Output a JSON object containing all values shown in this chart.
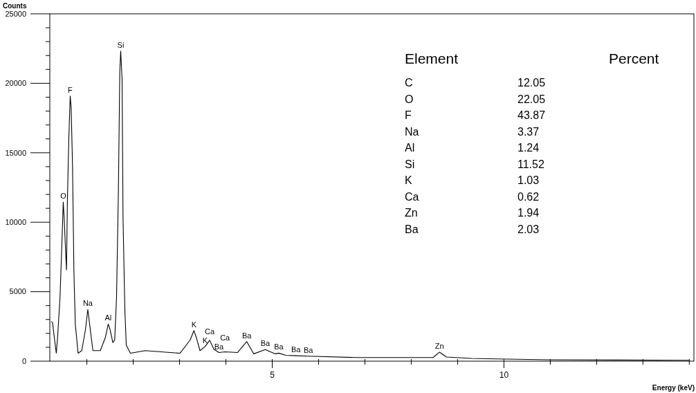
{
  "chart_data": {
    "type": "line",
    "xlabel": "Energy (keV)",
    "ylabel": "Counts",
    "x": [
      0.23,
      0.26,
      0.29,
      0.34,
      0.37,
      0.42,
      0.46,
      0.49,
      0.51,
      0.54,
      0.56,
      0.58,
      0.61,
      0.64,
      0.66,
      0.69,
      0.72,
      0.75,
      0.81,
      0.89,
      0.97,
      1.02,
      1.08,
      1.13,
      1.29,
      1.4,
      1.46,
      1.5,
      1.56,
      1.6,
      1.64,
      1.68,
      1.71,
      1.73,
      1.76,
      1.78,
      1.82,
      1.85,
      1.94,
      2.26,
      3.01,
      3.23,
      3.31,
      3.36,
      3.44,
      3.55,
      3.65,
      3.74,
      3.85,
      3.98,
      4.25,
      4.45,
      4.6,
      4.85,
      5.06,
      5.14,
      5.29,
      5.51,
      5.78,
      6.83,
      7.82,
      8.47,
      8.61,
      8.76,
      9.3,
      10.05,
      11,
      12.5,
      14
    ],
    "series": [
      {
        "color": "#000000",
        "values": [
          2860,
          2770,
          1900,
          570,
          1810,
          4580,
          8400,
          11450,
          10300,
          8000,
          6580,
          11640,
          16000,
          19080,
          18300,
          14100,
          6490,
          2670,
          570,
          760,
          2290,
          3720,
          2100,
          760,
          760,
          1720,
          2670,
          2290,
          1340,
          1530,
          4580,
          12210,
          20800,
          22320,
          20230,
          10300,
          3630,
          1140,
          570,
          760,
          570,
          1530,
          2200,
          1720,
          760,
          1050,
          1500,
          860,
          620,
          670,
          620,
          1410,
          530,
          830,
          530,
          580,
          420,
          390,
          360,
          260,
          260,
          260,
          650,
          300,
          200,
          150,
          100,
          80,
          60
        ]
      }
    ],
    "xlim": [
      0.2,
      14.1
    ],
    "xticks": [
      {
        "value": 1,
        "label": null
      },
      {
        "value": 2,
        "label": null
      },
      {
        "value": 3,
        "label": null
      },
      {
        "value": 4,
        "label": null
      },
      5,
      {
        "value": 6,
        "label": null
      },
      {
        "value": 7,
        "label": null
      },
      {
        "value": 8,
        "label": null
      },
      {
        "value": 9,
        "label": null
      },
      10,
      {
        "value": 11,
        "label": null
      },
      {
        "value": 12,
        "label": null
      },
      {
        "value": 13,
        "label": null
      },
      {
        "value": 14,
        "label": null
      }
    ],
    "ylim": [
      0,
      25000
    ],
    "yticks": [
      0,
      {
        "value": 1000,
        "label": null
      },
      {
        "value": 2000,
        "label": null
      },
      {
        "value": 3000,
        "label": null
      },
      {
        "value": 4000,
        "label": null
      },
      5000,
      {
        "value": 6000,
        "label": null
      },
      {
        "value": 7000,
        "label": null
      },
      {
        "value": 8000,
        "label": null
      },
      {
        "value": 9000,
        "label": null
      },
      10000,
      {
        "value": 11000,
        "label": null
      },
      {
        "value": 12000,
        "label": null
      },
      {
        "value": 13000,
        "label": null
      },
      {
        "value": 14000,
        "label": null
      },
      15000,
      {
        "value": 16000,
        "label": null
      },
      {
        "value": 17000,
        "label": null
      },
      {
        "value": 18000,
        "label": null
      },
      {
        "value": 19000,
        "label": null
      },
      20000,
      {
        "value": 21000,
        "label": null
      },
      {
        "value": 22000,
        "label": null
      },
      {
        "value": 23000,
        "label": null
      },
      {
        "value": 24000,
        "label": null
      },
      25000
    ],
    "grid": false,
    "marker": "none",
    "line_style": "solid",
    "annotations": [
      {
        "text": "O",
        "x": 0.49,
        "y": 11450
      },
      {
        "text": "F",
        "x": 0.64,
        "y": 19080
      },
      {
        "text": "Si",
        "x": 1.73,
        "y": 22320
      },
      {
        "text": "Na",
        "x": 1.02,
        "y": 3720
      },
      {
        "text": "Al",
        "x": 1.46,
        "y": 2670
      },
      {
        "text": "K",
        "x": 3.31,
        "y": 2200
      },
      {
        "text": "K",
        "x": 3.55,
        "y": 1050
      },
      {
        "text": "Ca",
        "x": 3.65,
        "y": 1500
      },
      {
        "text": "Ca",
        "x": 3.98,
        "y": 670
      },
      {
        "text": "Ba",
        "x": 3.85,
        "y": 620
      },
      {
        "text": "Ba",
        "x": 4.45,
        "y": 1410
      },
      {
        "text": "Ba",
        "x": 4.85,
        "y": 830
      },
      {
        "text": "Ba",
        "x": 5.14,
        "y": 580
      },
      {
        "text": "Ba",
        "x": 5.51,
        "y": 390
      },
      {
        "text": "Ba",
        "x": 5.78,
        "y": 360
      },
      {
        "text": "Zn",
        "x": 8.61,
        "y": 650
      },
      "Element",
      "Percent",
      "C",
      "12.05",
      "O",
      "22.05",
      "F",
      "43.87",
      "Na",
      "3.37",
      "Al",
      "1.24",
      "Si",
      "11.52",
      "K",
      "1.03",
      "Ca",
      "0.62",
      "Zn",
      "1.94",
      "Ba",
      "2.03"
    ]
  }
}
